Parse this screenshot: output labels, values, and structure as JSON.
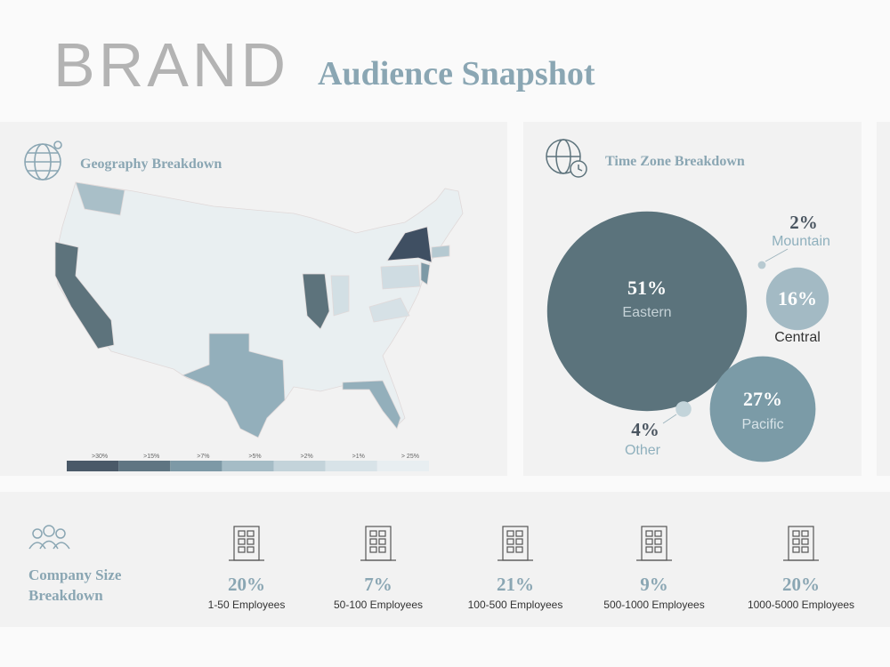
{
  "header": {
    "brand": "BRAND",
    "title": "Audience Snapshot"
  },
  "geography": {
    "title": "Geography Breakdown",
    "legend": [
      ">30%",
      ">15%",
      ">7%",
      ">5%",
      ">2%",
      ">1%",
      "> 25%"
    ]
  },
  "time_zone": {
    "title": "Time Zone Breakdown",
    "items": [
      {
        "name": "Eastern",
        "value": 51,
        "label": "51%"
      },
      {
        "name": "Pacific",
        "value": 27,
        "label": "27%"
      },
      {
        "name": "Central",
        "value": 16,
        "label": "16%"
      },
      {
        "name": "Mountain",
        "value": 2,
        "label": "2%"
      },
      {
        "name": "Other",
        "value": 4,
        "label": "4%"
      }
    ]
  },
  "company_size": {
    "title": [
      "Company Size",
      "Breakdown"
    ],
    "items": [
      {
        "value": "20%",
        "label": "1-50 Employees"
      },
      {
        "value": "7%",
        "label": "50-100 Employees"
      },
      {
        "value": "21%",
        "label": "100-500 Employees"
      },
      {
        "value": "9%",
        "label": "500-1000 Employees"
      },
      {
        "value": "20%",
        "label": "1000-5000 Employees"
      }
    ]
  }
}
